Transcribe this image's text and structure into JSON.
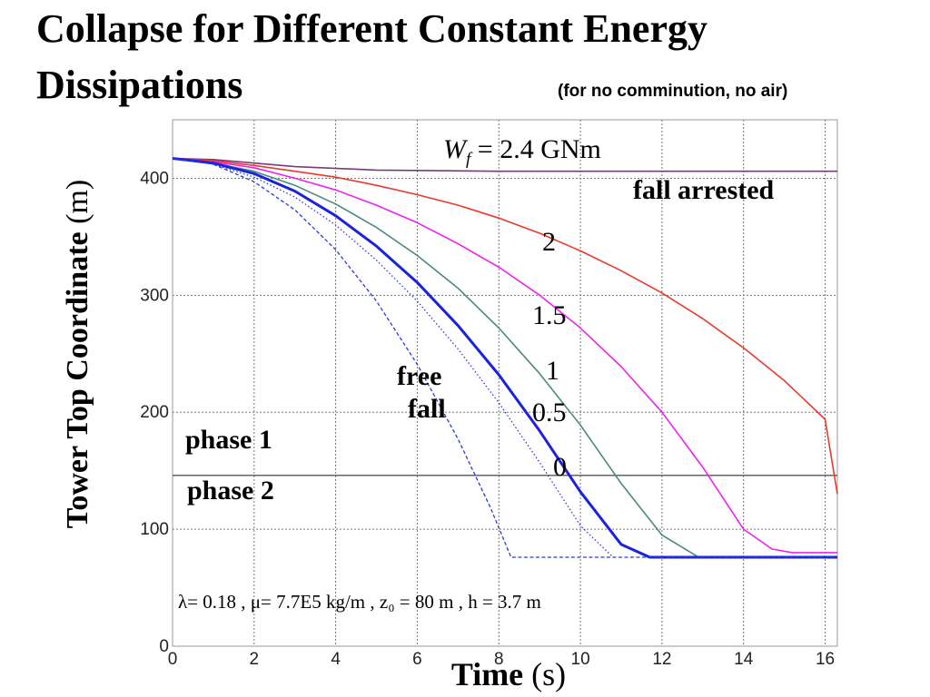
{
  "title_line1": "Collapse for Different Constant Energy",
  "title_line2": "Dissipations",
  "subtitle": "(for no comminution, no air)",
  "ylabel_bold": "Tower Top Coordinate",
  "ylabel_unit": " (m)",
  "xlabel_bold": "Time",
  "xlabel_unit": " (s)",
  "chart_data": {
    "type": "line",
    "xlabel": "Time (s)",
    "ylabel": "Tower Top Coordinate (m)",
    "xlim": [
      0,
      16.3
    ],
    "ylim": [
      0,
      450
    ],
    "xticks": [
      0,
      2,
      4,
      6,
      8,
      10,
      12,
      14,
      16
    ],
    "yticks": [
      0,
      100,
      200,
      300,
      400
    ],
    "grid": true,
    "phase_boundary_y": 146,
    "series": [
      {
        "name": "2.4 GNm",
        "color": "#7a3a78",
        "style": "solid",
        "width": 1.6,
        "x": [
          0,
          1,
          2,
          3,
          5,
          8,
          12,
          16.3
        ],
        "y": [
          417,
          416,
          413,
          410,
          407,
          406,
          406,
          406
        ]
      },
      {
        "name": "2",
        "color": "#e83a2a",
        "style": "solid",
        "width": 1.6,
        "x": [
          0,
          1,
          2,
          3,
          4,
          5,
          6,
          7,
          8,
          9,
          10,
          11,
          12,
          13,
          14,
          15,
          16,
          16.3
        ],
        "y": [
          417,
          415,
          411,
          406,
          401,
          394,
          386,
          377,
          366,
          353,
          338,
          321,
          302,
          280,
          255,
          227,
          194,
          130
        ]
      },
      {
        "name": "1.5",
        "color": "#ee22ee",
        "style": "solid",
        "width": 1.6,
        "x": [
          0,
          1,
          2,
          3,
          4,
          5,
          6,
          7,
          8,
          9,
          10,
          11,
          12,
          13,
          14,
          14.7,
          15.2,
          16.3
        ],
        "y": [
          417,
          414,
          409,
          400,
          390,
          377,
          362,
          344,
          324,
          300,
          272,
          239,
          200,
          153,
          100,
          83,
          80,
          80
        ]
      },
      {
        "name": "1",
        "color": "#4a8a7a",
        "style": "solid",
        "width": 1.6,
        "x": [
          0,
          1,
          2,
          3,
          4,
          5,
          6,
          7,
          8,
          9,
          10,
          11,
          12,
          12.9,
          16.3
        ],
        "y": [
          417,
          413,
          406,
          394,
          378,
          358,
          334,
          306,
          272,
          233,
          189,
          139,
          95,
          76,
          76
        ]
      },
      {
        "name": "0.5",
        "color": "#1a22dd",
        "style": "solid",
        "width": 3,
        "x": [
          0,
          1,
          2,
          3,
          4,
          5,
          6,
          7,
          8,
          9,
          10,
          11,
          11.7,
          16.3
        ],
        "y": [
          417,
          413,
          404,
          389,
          368,
          342,
          311,
          274,
          232,
          184,
          132,
          87,
          76,
          76
        ]
      },
      {
        "name": "0",
        "color": "#2a3ad8",
        "style": "dotted",
        "width": 1.3,
        "x": [
          0,
          1,
          2,
          3,
          4,
          5,
          6,
          7,
          8,
          9,
          10,
          10.8
        ],
        "y": [
          417,
          412,
          401,
          384,
          360,
          330,
          295,
          254,
          208,
          157,
          103,
          76
        ]
      },
      {
        "name": "free fall",
        "color": "#2a3ad8",
        "style": "dashed",
        "width": 1.3,
        "x": [
          0,
          1,
          2,
          3,
          4,
          5,
          6,
          7,
          7.8,
          8.3,
          16.3
        ],
        "y": [
          417,
          412,
          397,
          373,
          339,
          295,
          241,
          177,
          118,
          76,
          76
        ]
      }
    ],
    "annotations": {
      "wf_label": "W",
      "wf_sub": "f",
      "wf_value": " = 2.4 GNm",
      "fall_arrested": "fall arrested",
      "lbl_2": "2",
      "lbl_15": "1.5",
      "lbl_1": "1",
      "lbl_05": "0.5",
      "lbl_0": "0",
      "free": "free",
      "fall": "fall",
      "phase1": "phase 1",
      "phase2": "phase 2",
      "params": "λ= 0.18 , μ= 7.7E5 kg/m , z₀ = 80 m , h = 3.7 m"
    }
  }
}
